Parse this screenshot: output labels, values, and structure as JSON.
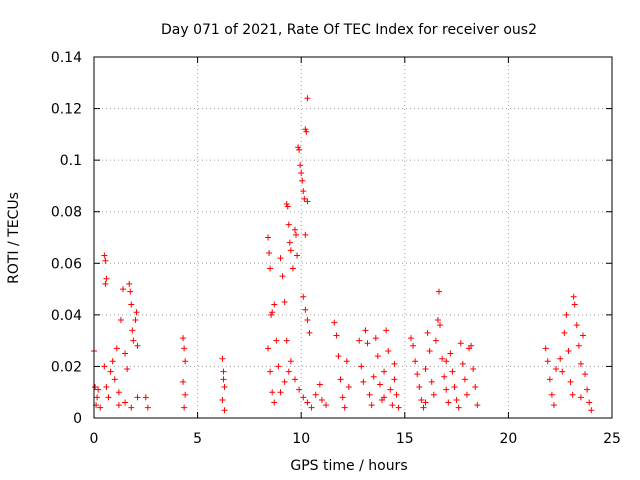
{
  "chart_data": {
    "type": "scatter",
    "title": "Day 071 of 2021, Rate Of TEC Index for receiver ous2",
    "xlabel": "GPS time / hours",
    "ylabel": "ROTI / TECUs",
    "xlim": [
      0,
      25
    ],
    "ylim": [
      0,
      0.14
    ],
    "x_ticks": [
      "0",
      "5",
      "10",
      "15",
      "20",
      "25"
    ],
    "y_ticks": [
      "0",
      "0.02",
      "0.04",
      "0.06",
      "0.08",
      "0.1",
      "0.12",
      "0.14"
    ],
    "grid": true,
    "marker": "+",
    "color": "#ff0000",
    "series": [
      {
        "points": [
          [
            0.0,
            0.026
          ],
          [
            0.05,
            0.012
          ],
          [
            0.1,
            0.005
          ],
          [
            0.15,
            0.008
          ],
          [
            0.2,
            0.011
          ],
          [
            0.3,
            0.004
          ],
          [
            0.5,
            0.063
          ],
          [
            0.55,
            0.061
          ],
          [
            0.6,
            0.054
          ],
          [
            0.55,
            0.052
          ],
          [
            0.5,
            0.02
          ],
          [
            0.6,
            0.012
          ],
          [
            0.7,
            0.008
          ],
          [
            0.8,
            0.018
          ],
          [
            0.9,
            0.022
          ],
          [
            1.0,
            0.015
          ],
          [
            1.1,
            0.027
          ],
          [
            1.2,
            0.01
          ],
          [
            1.3,
            0.038
          ],
          [
            1.4,
            0.05
          ],
          [
            1.5,
            0.025
          ],
          [
            1.6,
            0.019
          ],
          [
            1.7,
            0.052
          ],
          [
            1.75,
            0.049
          ],
          [
            1.8,
            0.044
          ],
          [
            1.85,
            0.034
          ],
          [
            1.9,
            0.03
          ],
          [
            2.0,
            0.038
          ],
          [
            2.05,
            0.041
          ],
          [
            2.1,
            0.028
          ],
          [
            1.2,
            0.005
          ],
          [
            1.5,
            0.006
          ],
          [
            1.8,
            0.004
          ],
          [
            2.1,
            0.008
          ],
          [
            2.5,
            0.008
          ],
          [
            2.6,
            0.004
          ],
          [
            4.3,
            0.031
          ],
          [
            4.35,
            0.027
          ],
          [
            4.4,
            0.022
          ],
          [
            4.3,
            0.014
          ],
          [
            4.4,
            0.009
          ],
          [
            4.35,
            0.004
          ],
          [
            6.2,
            0.023
          ],
          [
            6.25,
            0.018
          ],
          [
            6.3,
            0.012
          ],
          [
            6.2,
            0.007
          ],
          [
            6.3,
            0.003
          ],
          [
            6.25,
            0.015
          ],
          [
            8.4,
            0.07
          ],
          [
            8.45,
            0.064
          ],
          [
            8.5,
            0.058
          ],
          [
            8.55,
            0.04
          ],
          [
            8.6,
            0.041
          ],
          [
            8.7,
            0.044
          ],
          [
            8.4,
            0.027
          ],
          [
            8.5,
            0.018
          ],
          [
            8.6,
            0.01
          ],
          [
            8.7,
            0.006
          ],
          [
            8.8,
            0.03
          ],
          [
            8.9,
            0.02
          ],
          [
            9.0,
            0.062
          ],
          [
            9.1,
            0.055
          ],
          [
            9.2,
            0.045
          ],
          [
            9.3,
            0.083
          ],
          [
            9.35,
            0.082
          ],
          [
            9.4,
            0.075
          ],
          [
            9.45,
            0.068
          ],
          [
            9.5,
            0.065
          ],
          [
            9.6,
            0.058
          ],
          [
            9.7,
            0.073
          ],
          [
            9.75,
            0.071
          ],
          [
            9.8,
            0.063
          ],
          [
            9.85,
            0.105
          ],
          [
            9.9,
            0.104
          ],
          [
            9.95,
            0.098
          ],
          [
            10.0,
            0.095
          ],
          [
            10.05,
            0.092
          ],
          [
            10.1,
            0.088
          ],
          [
            10.15,
            0.085
          ],
          [
            10.2,
            0.112
          ],
          [
            10.25,
            0.111
          ],
          [
            10.3,
            0.124
          ],
          [
            10.2,
            0.071
          ],
          [
            10.3,
            0.084
          ],
          [
            10.1,
            0.047
          ],
          [
            10.2,
            0.042
          ],
          [
            10.3,
            0.038
          ],
          [
            10.4,
            0.033
          ],
          [
            9.3,
            0.03
          ],
          [
            9.5,
            0.022
          ],
          [
            9.7,
            0.015
          ],
          [
            9.9,
            0.011
          ],
          [
            10.1,
            0.008
          ],
          [
            10.3,
            0.006
          ],
          [
            10.5,
            0.004
          ],
          [
            10.7,
            0.009
          ],
          [
            10.9,
            0.013
          ],
          [
            11.0,
            0.007
          ],
          [
            11.2,
            0.005
          ],
          [
            9.0,
            0.01
          ],
          [
            9.2,
            0.014
          ],
          [
            9.4,
            0.018
          ],
          [
            11.6,
            0.037
          ],
          [
            11.7,
            0.032
          ],
          [
            11.8,
            0.024
          ],
          [
            11.9,
            0.015
          ],
          [
            12.0,
            0.008
          ],
          [
            12.1,
            0.004
          ],
          [
            12.2,
            0.022
          ],
          [
            12.3,
            0.012
          ],
          [
            12.8,
            0.03
          ],
          [
            12.9,
            0.02
          ],
          [
            13.0,
            0.014
          ],
          [
            13.1,
            0.034
          ],
          [
            13.2,
            0.029
          ],
          [
            13.3,
            0.009
          ],
          [
            13.4,
            0.005
          ],
          [
            13.6,
            0.031
          ],
          [
            13.7,
            0.024
          ],
          [
            13.8,
            0.013
          ],
          [
            13.9,
            0.007
          ],
          [
            14.0,
            0.018
          ],
          [
            14.1,
            0.034
          ],
          [
            14.2,
            0.026
          ],
          [
            14.3,
            0.011
          ],
          [
            14.4,
            0.005
          ],
          [
            14.5,
            0.015
          ],
          [
            14.6,
            0.009
          ],
          [
            14.7,
            0.004
          ],
          [
            13.5,
            0.016
          ],
          [
            14.0,
            0.008
          ],
          [
            14.5,
            0.021
          ],
          [
            15.3,
            0.031
          ],
          [
            15.4,
            0.028
          ],
          [
            15.5,
            0.022
          ],
          [
            15.6,
            0.017
          ],
          [
            15.7,
            0.012
          ],
          [
            15.8,
            0.007
          ],
          [
            15.9,
            0.004
          ],
          [
            16.0,
            0.019
          ],
          [
            16.1,
            0.033
          ],
          [
            16.2,
            0.026
          ],
          [
            16.3,
            0.014
          ],
          [
            16.4,
            0.009
          ],
          [
            16.5,
            0.03
          ],
          [
            16.6,
            0.038
          ],
          [
            16.65,
            0.049
          ],
          [
            16.7,
            0.036
          ],
          [
            16.8,
            0.023
          ],
          [
            16.9,
            0.016
          ],
          [
            17.0,
            0.011
          ],
          [
            17.1,
            0.006
          ],
          [
            17.2,
            0.025
          ],
          [
            17.3,
            0.018
          ],
          [
            17.4,
            0.012
          ],
          [
            17.5,
            0.007
          ],
          [
            17.6,
            0.004
          ],
          [
            17.7,
            0.029
          ],
          [
            17.8,
            0.021
          ],
          [
            17.9,
            0.015
          ],
          [
            18.0,
            0.009
          ],
          [
            18.1,
            0.027
          ],
          [
            18.2,
            0.028
          ],
          [
            18.3,
            0.019
          ],
          [
            18.4,
            0.012
          ],
          [
            18.5,
            0.005
          ],
          [
            16.0,
            0.006
          ],
          [
            17.0,
            0.022
          ],
          [
            21.8,
            0.027
          ],
          [
            21.9,
            0.022
          ],
          [
            22.0,
            0.015
          ],
          [
            22.1,
            0.009
          ],
          [
            22.2,
            0.005
          ],
          [
            22.3,
            0.019
          ],
          [
            22.5,
            0.023
          ],
          [
            22.6,
            0.018
          ],
          [
            22.7,
            0.033
          ],
          [
            22.8,
            0.04
          ],
          [
            22.9,
            0.026
          ],
          [
            23.0,
            0.014
          ],
          [
            23.1,
            0.009
          ],
          [
            23.15,
            0.047
          ],
          [
            23.2,
            0.044
          ],
          [
            23.3,
            0.036
          ],
          [
            23.4,
            0.028
          ],
          [
            23.5,
            0.021
          ],
          [
            23.6,
            0.032
          ],
          [
            23.7,
            0.017
          ],
          [
            23.8,
            0.011
          ],
          [
            23.9,
            0.006
          ],
          [
            24.0,
            0.003
          ],
          [
            23.5,
            0.008
          ]
        ]
      }
    ]
  }
}
